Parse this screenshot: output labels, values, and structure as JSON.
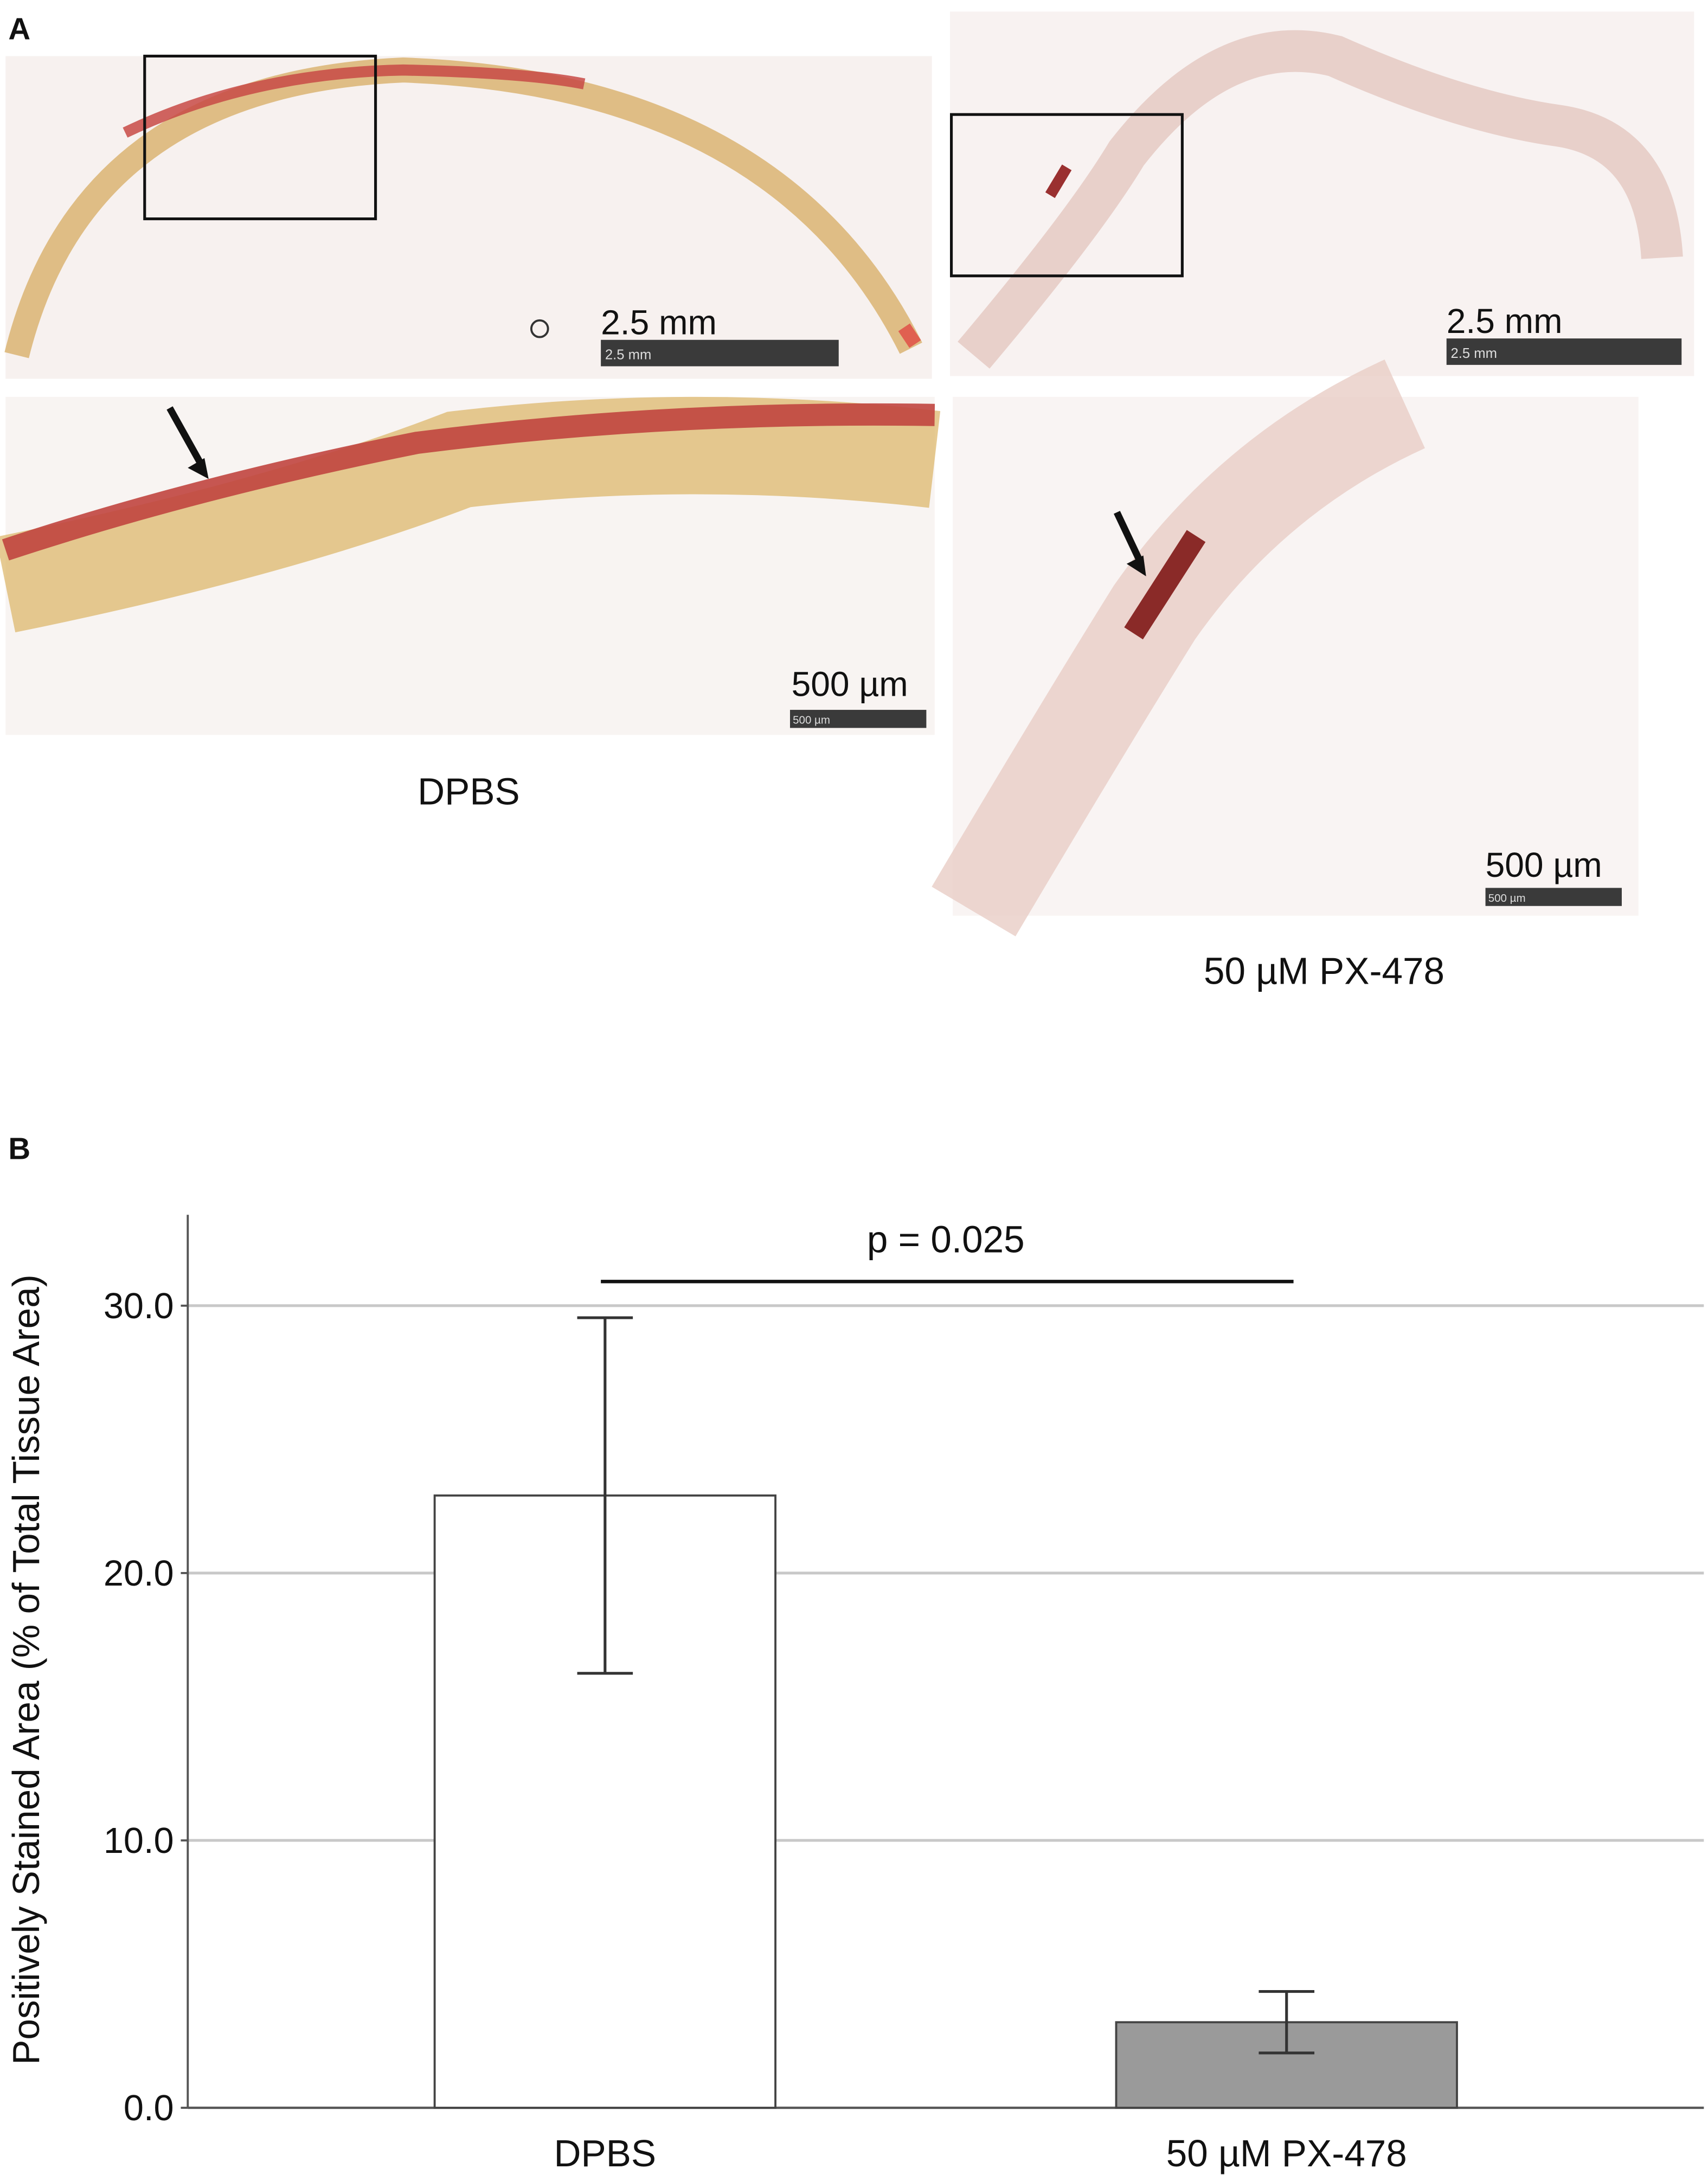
{
  "panel_a": {
    "label": "A",
    "images": [
      {
        "scale_text": "2.5 mm",
        "scale_bar_text": "2.5 mm"
      },
      {
        "scale_text": "2.5 mm",
        "scale_bar_text": "2.5 mm"
      },
      {
        "scale_text": "500 µm",
        "scale_bar_text": "500 µm"
      },
      {
        "scale_text": "500 µm",
        "scale_bar_text": "500 µm"
      }
    ],
    "captions": [
      "DPBS",
      "50 µM PX-478"
    ]
  },
  "chart_data": {
    "type": "bar",
    "panel_label": "B",
    "y_label": "Positively Stained Area (% of Total Tissue Area)",
    "categories": [
      "DPBS",
      "50 µM PX-478"
    ],
    "values": [
      22.9,
      3.2
    ],
    "errors": [
      6.65,
      1.15
    ],
    "colors": [
      "#ffffff",
      "#9a9a9a"
    ],
    "annotation": "p = 0.025",
    "ylim": [
      0,
      33.4
    ],
    "yticks": [
      {
        "value": 0,
        "label": "0.0"
      },
      {
        "value": 10,
        "label": "10.0"
      },
      {
        "value": 20,
        "label": "20.0"
      },
      {
        "value": 30,
        "label": "30.0"
      }
    ],
    "grid": true
  }
}
